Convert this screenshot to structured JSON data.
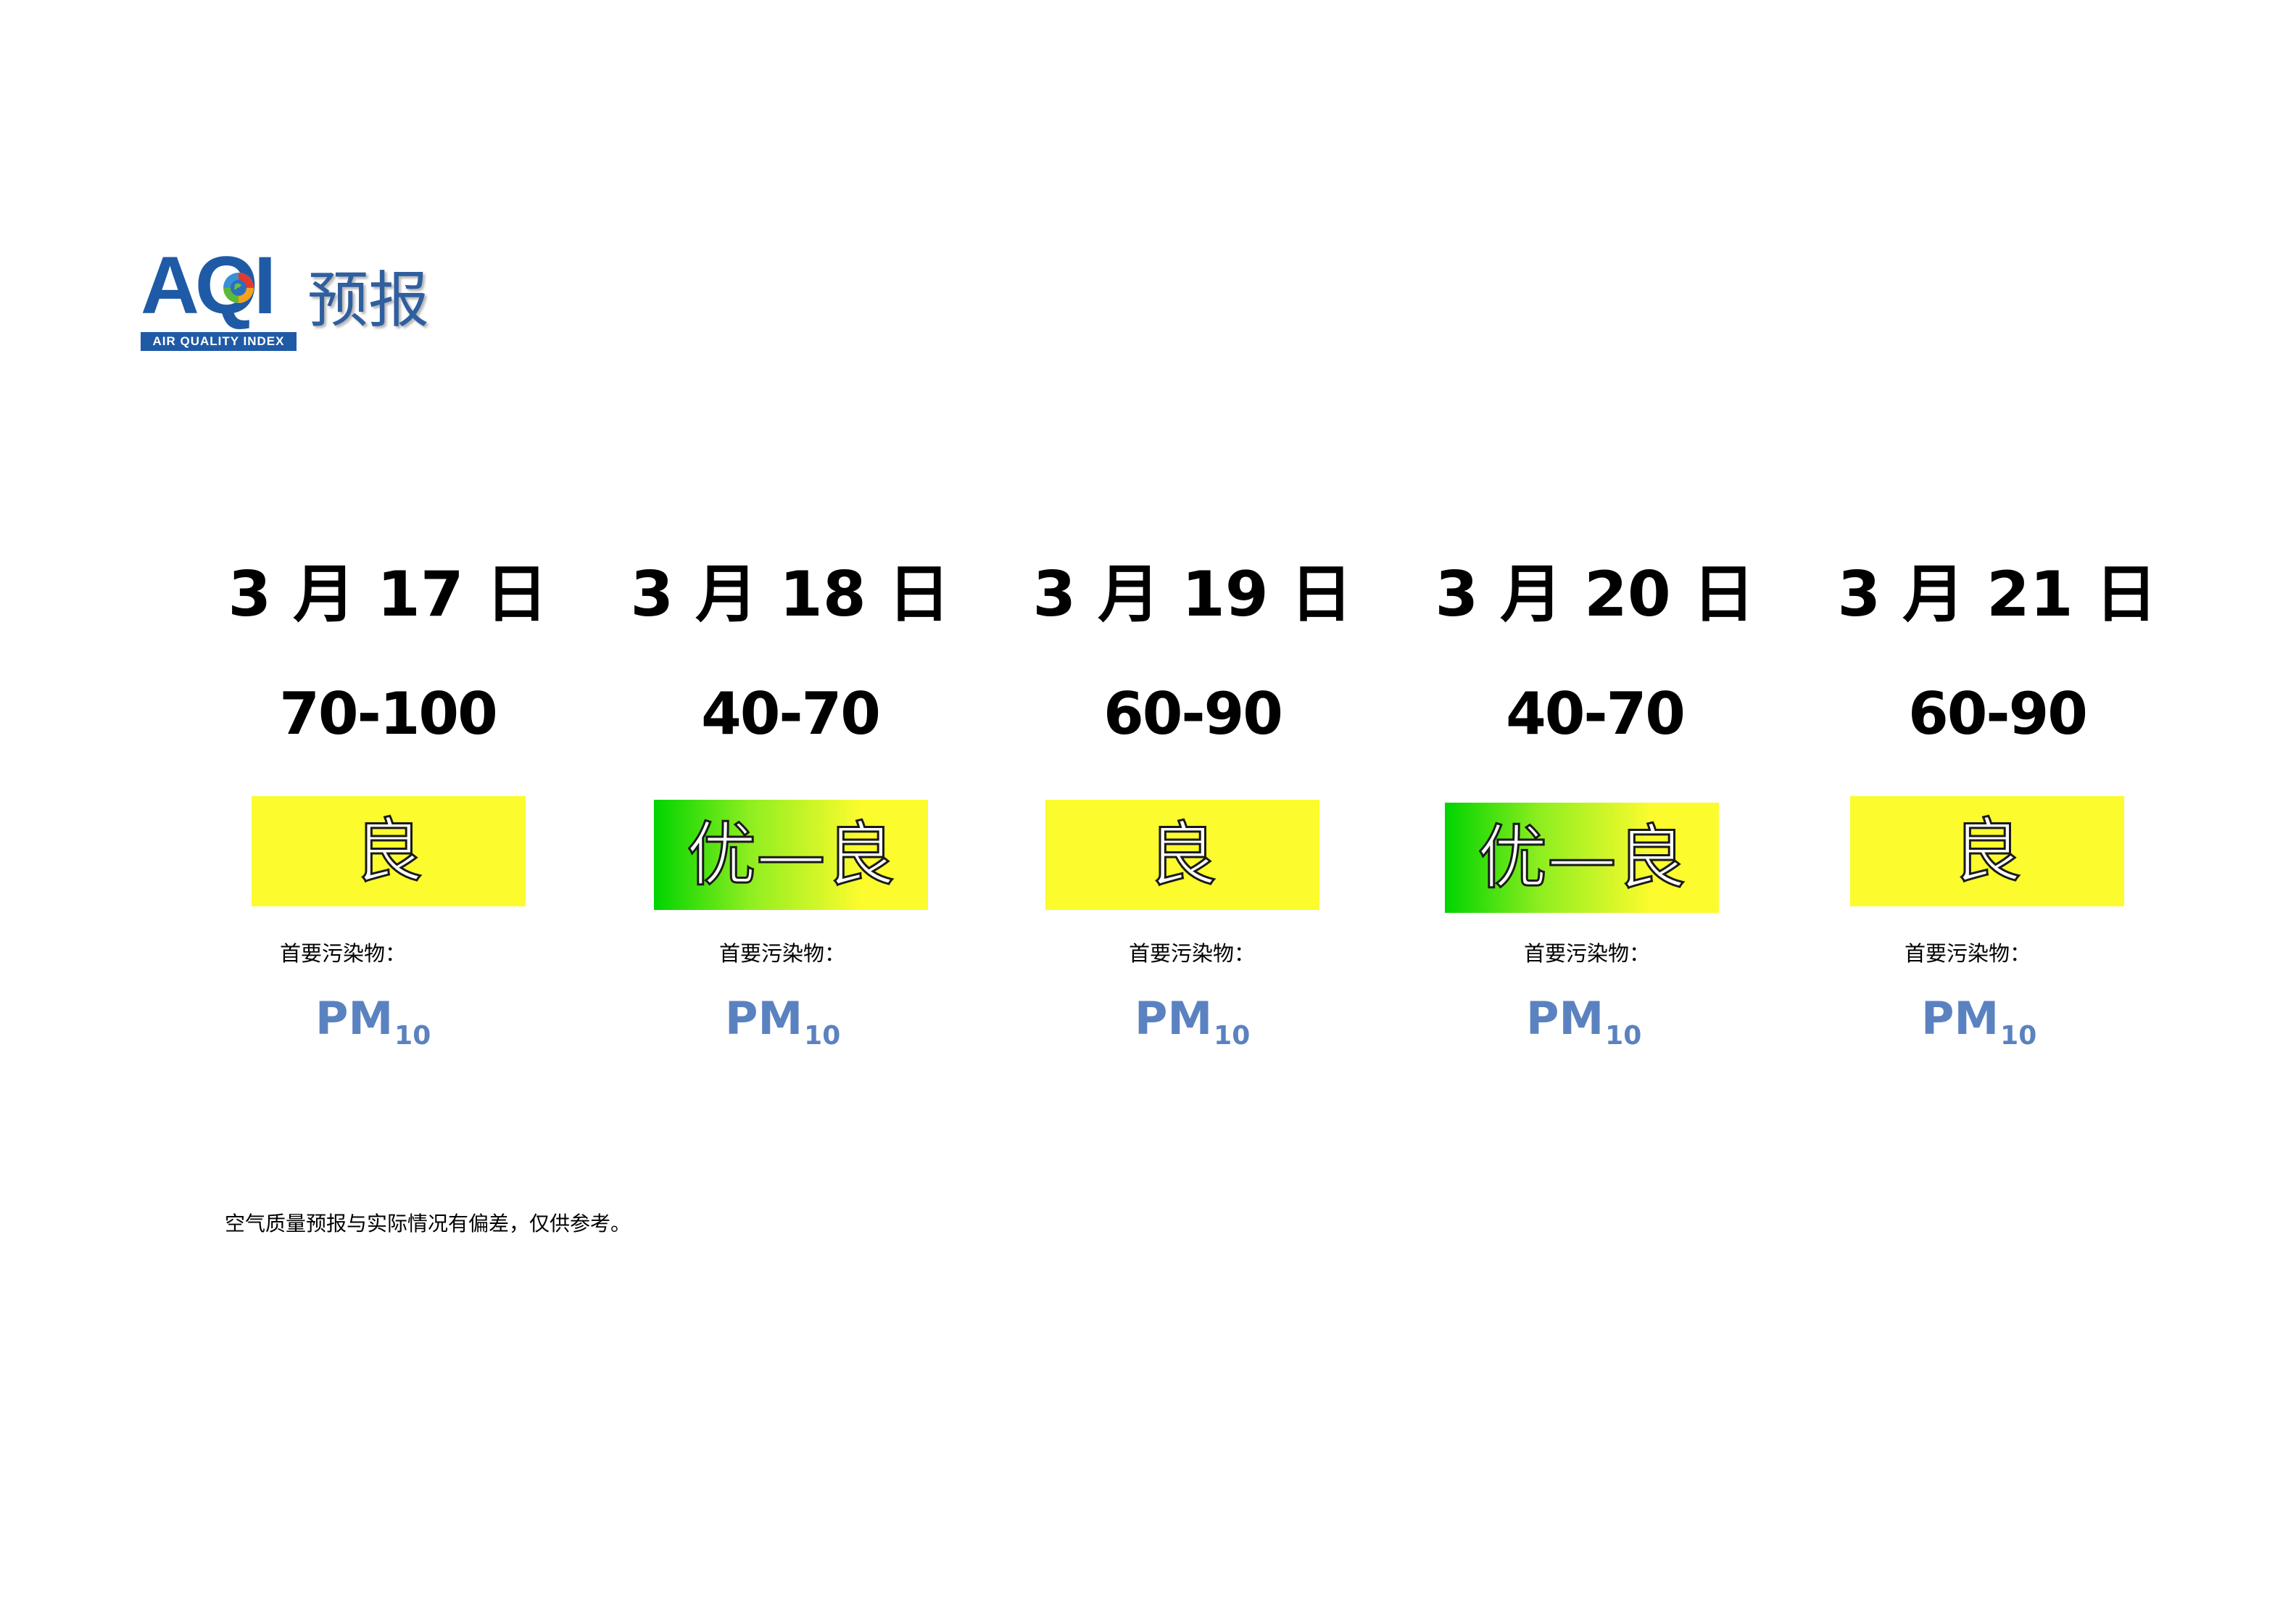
{
  "logo": {
    "letters": "AQI",
    "subtitle": "AIR QUALITY INDEX",
    "title": "预报"
  },
  "forecast": [
    {
      "date": "3 月 17 日",
      "range": "70-100",
      "level": "良",
      "pollutant_label": "首要污染物：",
      "pollutant": "PM",
      "pollutant_sub": "10"
    },
    {
      "date": "3 月 18 日",
      "range": "40-70",
      "level": "优—良",
      "pollutant_label": "首要污染物：",
      "pollutant": "PM",
      "pollutant_sub": "10"
    },
    {
      "date": "3 月 19 日",
      "range": "60-90",
      "level": "良",
      "pollutant_label": "首要污染物：",
      "pollutant": "PM",
      "pollutant_sub": "10"
    },
    {
      "date": "3 月 20 日",
      "range": "40-70",
      "level": "优—良",
      "pollutant_label": "首要污染物：",
      "pollutant": "PM",
      "pollutant_sub": "10"
    },
    {
      "date": "3 月 21 日",
      "range": "60-90",
      "level": "良",
      "pollutant_label": "首要污染物：",
      "pollutant": "PM",
      "pollutant_sub": "10"
    }
  ],
  "colors": {
    "good": "#fbfb2e",
    "excellent": "#00d400",
    "pollutant_text": "#5b82c0",
    "logo_blue": "#1f5aa6"
  },
  "footnote": "空气质量预报与实际情况有偏差，仅供参考。"
}
